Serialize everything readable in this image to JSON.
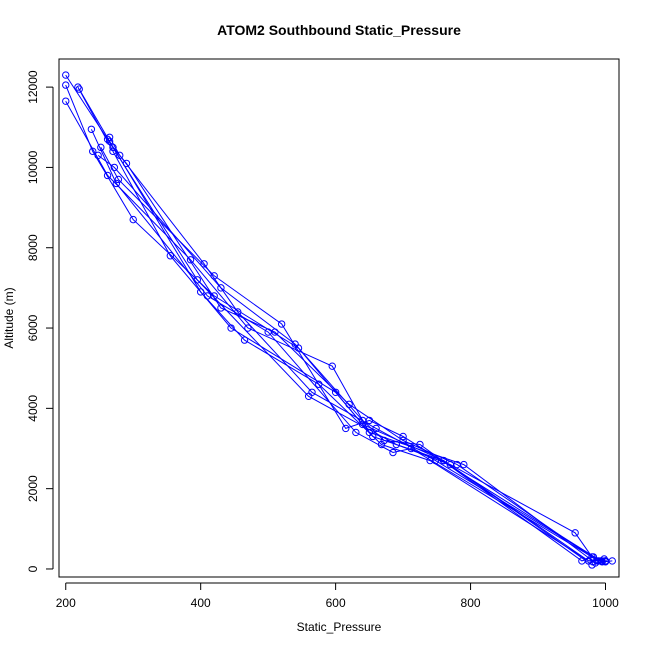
{
  "chart_data": {
    "type": "line",
    "title": "ATOM2 Southbound Static_Pressure",
    "xlabel": "Static_Pressure",
    "ylabel": "Altitude (m)",
    "xlim": [
      190,
      1020
    ],
    "ylim": [
      -200,
      12700
    ],
    "xticks": [
      200,
      400,
      600,
      800,
      1000
    ],
    "yticks": [
      0,
      2000,
      4000,
      6000,
      8000,
      10000,
      12000
    ],
    "grid": false,
    "legend": "none",
    "series_color": "#0000ff",
    "marker": "open-circle",
    "series": [
      {
        "x": [
          200,
          262,
          395,
          560,
          690,
          770,
          955,
          980,
          1000
        ],
        "y": [
          12300,
          10700,
          7200,
          4300,
          3100,
          2600,
          900,
          300,
          200
        ]
      },
      {
        "x": [
          200,
          240,
          300,
          420,
          545,
          640,
          760,
          975,
          995
        ],
        "y": [
          12050,
          10400,
          8700,
          6800,
          5500,
          3600,
          2700,
          200,
          200
        ]
      },
      {
        "x": [
          200,
          262,
          385,
          470,
          595,
          650,
          790,
          985,
          1010
        ],
        "y": [
          11650,
          9800,
          7700,
          6000,
          5050,
          3400,
          2600,
          150,
          200
        ]
      },
      {
        "x": [
          218,
          270,
          355,
          445,
          600,
          655,
          760,
          980,
          1000
        ],
        "y": [
          12000,
          10400,
          7800,
          6000,
          4400,
          3300,
          2700,
          100,
          200
        ]
      },
      {
        "x": [
          220,
          265,
          400,
          465,
          575,
          668,
          740,
          975,
          998
        ],
        "y": [
          11950,
          10650,
          6900,
          5700,
          4600,
          3100,
          2700,
          200,
          250
        ]
      },
      {
        "x": [
          238,
          275,
          410,
          500,
          630,
          685,
          712,
          990
        ],
        "y": [
          10950,
          9600,
          6800,
          5900,
          3400,
          2900,
          3000,
          200
        ]
      },
      {
        "x": [
          252,
          278,
          420,
          520,
          615,
          650,
          700,
          993,
          1000
        ],
        "y": [
          10500,
          9700,
          7300,
          6100,
          3500,
          3700,
          3300,
          200,
          180
        ]
      },
      {
        "x": [
          248,
          272,
          430,
          540,
          640,
          672,
          725,
          965,
          982
        ],
        "y": [
          10300,
          10000,
          7000,
          5600,
          3700,
          3200,
          3100,
          200,
          300
        ]
      },
      {
        "x": [
          265,
          280,
          405,
          455,
          565,
          660,
          748,
          995
        ],
        "y": [
          10750,
          10300,
          7600,
          6400,
          4400,
          3500,
          2700,
          180
        ]
      },
      {
        "x": [
          270,
          290,
          430,
          510,
          620,
          700,
          780,
          988,
          1000
        ],
        "y": [
          10500,
          10100,
          6500,
          5900,
          4100,
          3200,
          2600,
          200,
          200
        ]
      }
    ]
  }
}
